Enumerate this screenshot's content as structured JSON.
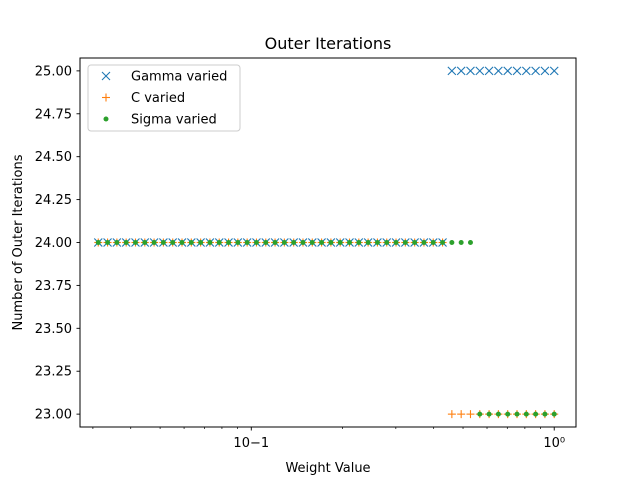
{
  "chart_data": {
    "type": "scatter",
    "title": "Outer Iterations",
    "xlabel": "Weight Value",
    "ylabel": "Number of Outer Iterations",
    "xscale": "log",
    "xlim": [
      0.0272,
      1.18
    ],
    "ylim": [
      22.925,
      25.075
    ],
    "x_ticks": [
      {
        "value": 0.1,
        "label": "10−1"
      },
      {
        "value": 1.0,
        "label": "10⁰"
      }
    ],
    "y_ticks": [
      {
        "value": 23.0,
        "label": "23.00"
      },
      {
        "value": 23.25,
        "label": "23.25"
      },
      {
        "value": 23.5,
        "label": "23.50"
      },
      {
        "value": 23.75,
        "label": "23.75"
      },
      {
        "value": 24.0,
        "label": "24.00"
      },
      {
        "value": 24.25,
        "label": "24.25"
      },
      {
        "value": 24.5,
        "label": "24.50"
      },
      {
        "value": 24.75,
        "label": "24.75"
      },
      {
        "value": 25.0,
        "label": "25.00"
      }
    ],
    "grid": false,
    "legend_position": "top-left",
    "series": [
      {
        "name": "Gamma varied",
        "marker": "x",
        "color": "#1f77b4",
        "x_range": [
          0.03125,
          1.0
        ],
        "count": 50,
        "y_rule": [
          {
            "x_max": 0.4375,
            "y": 24
          },
          {
            "x_max": 1.0,
            "y": 25
          }
        ]
      },
      {
        "name": "C varied",
        "marker": "+",
        "color": "#ff7f0e",
        "x_range": [
          0.03125,
          1.0
        ],
        "count": 50,
        "y_rule": [
          {
            "x_max": 0.4375,
            "y": 24
          },
          {
            "x_max": 1.0,
            "y": 23
          }
        ]
      },
      {
        "name": "Sigma varied",
        "marker": "dot",
        "color": "#2ca02c",
        "x_range": [
          0.03125,
          1.0
        ],
        "count": 50,
        "y_rule": [
          {
            "x_max": 0.535,
            "y": 24
          },
          {
            "x_max": 1.0,
            "y": 23
          }
        ]
      }
    ]
  }
}
